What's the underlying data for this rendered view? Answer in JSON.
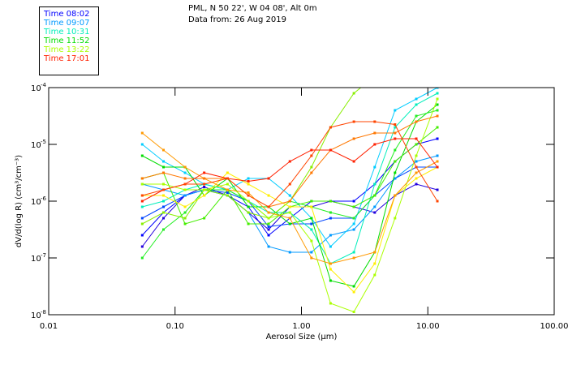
{
  "header": {
    "line1": "PML, N 50 22', W 04 08', Alt 0m",
    "line2": "Data from: 26 Aug 2019"
  },
  "legend": [
    {
      "label": "Time 08:02",
      "color": "#0000ff"
    },
    {
      "label": "Time 09:07",
      "color": "#0099ff"
    },
    {
      "label": "Time 10:31",
      "color": "#00eebb"
    },
    {
      "label": "Time 11:52",
      "color": "#00dd00"
    },
    {
      "label": "Time 13:22",
      "color": "#aaff00"
    },
    {
      "label": "Time 17:01",
      "color": "#ff2000"
    }
  ],
  "chart_data": {
    "type": "line",
    "title": "PML, N 50 22', W 04 08', Alt 0m",
    "xlabel": "Aerosol Size (µm)",
    "ylabel": "dV/d(log R) (cm³/cm⁻³)",
    "xscale": "log",
    "yscale": "log",
    "xlim": [
      0.01,
      100
    ],
    "ylim": [
      1e-08,
      0.0001
    ],
    "xticks": [
      "0.01",
      "0.10",
      "1.00",
      "10.00",
      "100.00"
    ],
    "yticks": [
      {
        "exp": "-4"
      },
      {
        "exp": "-5"
      },
      {
        "exp": "-6"
      },
      {
        "exp": "-7"
      },
      {
        "exp": "-8"
      }
    ],
    "x": [
      0.055,
      0.081,
      0.12,
      0.17,
      0.26,
      0.38,
      0.55,
      0.81,
      1.2,
      1.7,
      2.6,
      3.8,
      5.5,
      8.1,
      11.9
    ],
    "series_note": "values given as log10 of dV/d(log R)",
    "series": [
      {
        "color": "#0000ff",
        "log10_values": [
          -6.6,
          -6.2,
          -5.9,
          -5.8,
          -5.9,
          -6.1,
          -6.6,
          -6.3,
          -6.0,
          -6.0,
          -6.0,
          -5.7,
          -5.3,
          -5.0,
          -4.9
        ]
      },
      {
        "color": "#2200dd",
        "log10_values": [
          -6.8,
          -6.3,
          -5.9,
          -5.75,
          -5.9,
          -6.2,
          -6.5,
          -6.1,
          -6.1,
          -6.0,
          -6.1,
          -6.2,
          -5.9,
          -5.7,
          -5.8
        ]
      },
      {
        "color": "#0044ff",
        "log10_values": [
          -6.3,
          -6.1,
          -5.9,
          -5.8,
          -5.85,
          -6.0,
          -6.45,
          -6.4,
          -6.4,
          -6.3,
          -6.3,
          -5.9,
          -5.6,
          -5.4,
          -5.4
        ]
      },
      {
        "color": "#0099ff",
        "log10_values": [
          -5.7,
          -5.8,
          -5.9,
          -5.8,
          -5.9,
          -6.2,
          -6.8,
          -6.9,
          -6.9,
          -6.6,
          -6.5,
          -6.1,
          -5.6,
          -5.3,
          -5.2
        ]
      },
      {
        "color": "#00ccff",
        "log10_values": [
          -5.0,
          -5.3,
          -5.5,
          -5.7,
          -5.8,
          -5.6,
          -5.6,
          -5.9,
          -6.3,
          -6.8,
          -6.4,
          -5.4,
          -4.4,
          -4.2,
          -4.0
        ]
      },
      {
        "color": "#00eebb",
        "log10_values": [
          -6.1,
          -6.0,
          -5.8,
          -5.7,
          -5.8,
          -6.0,
          -6.2,
          -6.2,
          -6.5,
          -7.1,
          -6.9,
          -5.7,
          -4.7,
          -4.3,
          -4.1
        ]
      },
      {
        "color": "#00dd00",
        "log10_values": [
          -5.2,
          -5.4,
          -5.4,
          -5.9,
          -5.6,
          -6.1,
          -6.1,
          -6.4,
          -6.3,
          -7.4,
          -7.5,
          -6.9,
          -5.5,
          -4.6,
          -4.3
        ]
      },
      {
        "color": "#22ee22",
        "log10_values": [
          -7.0,
          -6.5,
          -6.2,
          -5.8,
          -5.8,
          -6.0,
          -6.3,
          -6.0,
          -6.1,
          -6.2,
          -6.3,
          -5.9,
          -5.1,
          -4.5,
          -4.4
        ]
      },
      {
        "color": "#44ee00",
        "log10_values": [
          -5.6,
          -5.5,
          -6.4,
          -6.3,
          -5.8,
          -6.4,
          -6.4,
          -6.1,
          -6.0,
          -6.0,
          -6.1,
          -5.9,
          -5.3,
          -5.0,
          -4.7
        ]
      },
      {
        "color": "#88ee00",
        "log10_values": [
          -6.4,
          -6.2,
          -6.3,
          -5.8,
          -5.9,
          -6.2,
          -6.3,
          -6.0,
          -5.4,
          -4.7,
          -4.1,
          -3.8,
          -3.6,
          -3.5,
          -3.4
        ]
      },
      {
        "color": "#aaff00",
        "log10_values": [
          -5.7,
          -5.7,
          -5.8,
          -5.8,
          -5.7,
          -6.0,
          -6.3,
          -6.2,
          -6.7,
          -7.8,
          -7.95,
          -7.3,
          -6.3,
          -5.2,
          -4.2
        ]
      },
      {
        "color": "#ffee00",
        "log10_values": [
          -5.9,
          -5.9,
          -6.1,
          -5.9,
          -5.5,
          -5.7,
          -5.9,
          -6.1,
          -6.1,
          -7.2,
          -7.6,
          -7.1,
          -5.9,
          -5.6,
          -5.4
        ]
      },
      {
        "color": "#ff9900",
        "log10_values": [
          -4.8,
          -5.1,
          -5.4,
          -5.6,
          -5.8,
          -5.85,
          -6.2,
          -6.3,
          -7.0,
          -7.1,
          -7.0,
          -6.9,
          -5.9,
          -5.5,
          -5.3
        ]
      },
      {
        "color": "#ff7700",
        "log10_values": [
          -5.6,
          -5.5,
          -5.6,
          -5.6,
          -5.6,
          -5.9,
          -6.1,
          -6.0,
          -5.5,
          -5.1,
          -4.9,
          -4.8,
          -4.8,
          -4.6,
          -4.5
        ]
      },
      {
        "color": "#ff2000",
        "log10_values": [
          -6.0,
          -5.8,
          -5.7,
          -5.5,
          -5.6,
          -5.65,
          -5.6,
          -5.3,
          -5.1,
          -5.1,
          -5.3,
          -5.0,
          -4.9,
          -4.9,
          -5.4
        ]
      },
      {
        "color": "#ff4400",
        "log10_values": [
          -5.9,
          -5.8,
          -5.7,
          -5.7,
          -5.6,
          -5.9,
          -6.1,
          -5.7,
          -5.2,
          -4.7,
          -4.6,
          -4.6,
          -4.65,
          -5.4,
          -6.0
        ]
      }
    ]
  }
}
